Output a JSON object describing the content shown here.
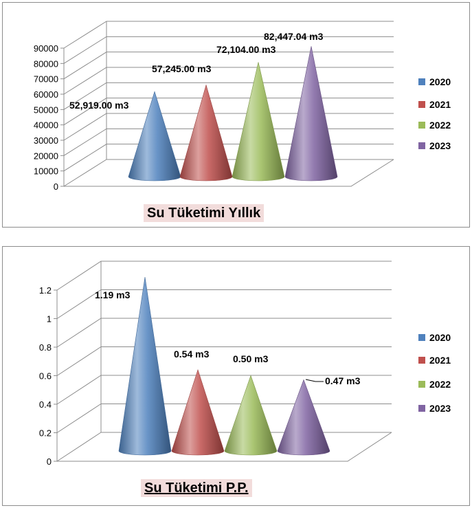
{
  "colors": {
    "2020": "#4f81bd",
    "2021": "#c0504d",
    "2022": "#9bbb59",
    "2023": "#8064a2"
  },
  "chart_data": [
    {
      "type": "bar",
      "subtype": "3d-cone",
      "title": "Su Tüketimi Yıllık",
      "categories": [
        "2020",
        "2021",
        "2022",
        "2023"
      ],
      "values": [
        52919.0,
        57245.0,
        72104.0,
        82447.04
      ],
      "data_labels": [
        "52,919.00 m3",
        "57,245.00 m3",
        "72,104.00 m3",
        "82,447.04 m3"
      ],
      "ylim": [
        0,
        90000
      ],
      "yticks": [
        "0",
        "10000",
        "20000",
        "30000",
        "40000",
        "50000",
        "60000",
        "70000",
        "80000",
        "90000"
      ],
      "legend": [
        "2020",
        "2021",
        "2022",
        "2023"
      ],
      "legend_position": "right",
      "grid": true
    },
    {
      "type": "bar",
      "subtype": "3d-cone",
      "title": "Su Tüketimi P.P.",
      "categories": [
        "2020",
        "2021",
        "2022",
        "2023"
      ],
      "values": [
        1.19,
        0.54,
        0.5,
        0.47
      ],
      "data_labels": [
        "1.19 m3",
        "0.54 m3",
        "0.50 m3",
        "0.47 m3"
      ],
      "ylim": [
        0,
        1.2
      ],
      "yticks": [
        "0",
        "0.2",
        "0.4",
        "0.6",
        "0.8",
        "1",
        "1.2"
      ],
      "legend": [
        "2020",
        "2021",
        "2022",
        "2023"
      ],
      "legend_position": "right",
      "grid": true
    }
  ]
}
